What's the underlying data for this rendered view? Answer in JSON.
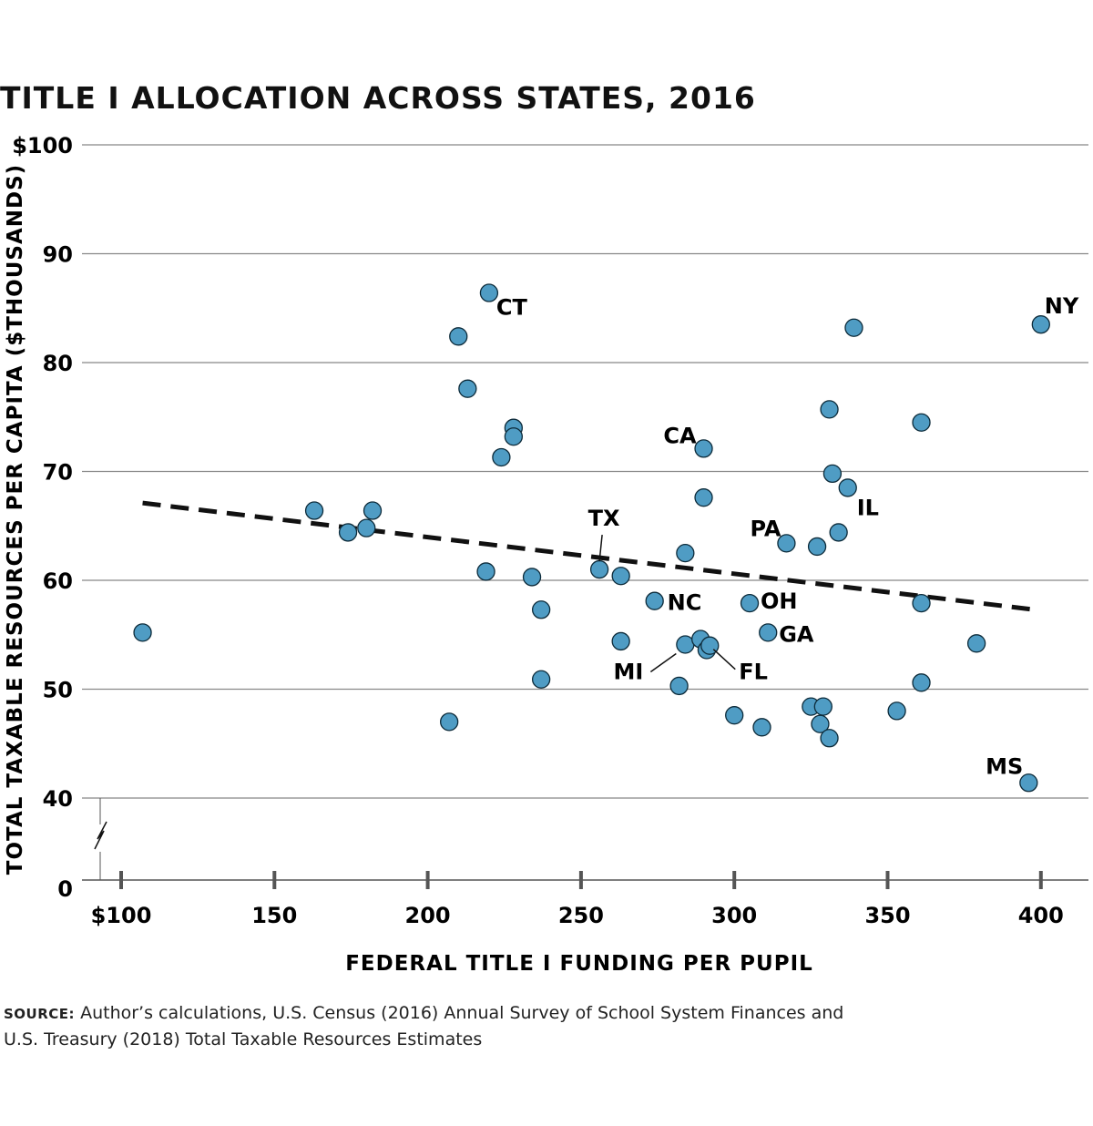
{
  "title": "TITLE I ALLOCATION ACROSS STATES, 2016",
  "source": {
    "label": "SOURCE:",
    "line1": "Author’s calculations, U.S. Census (2016) Annual Survey of School System Finances and",
    "line2": "U.S. Treasury (2018) Total Taxable Resources Estimates"
  },
  "colors": {
    "point": "#4f9cc4",
    "point_stroke": "#0d2b3a",
    "trend": "#111111",
    "grid": "#888888"
  },
  "chart_data": {
    "type": "scatter",
    "xlabel": "FEDERAL TITLE I FUNDING PER PUPIL",
    "ylabel": "TOTAL TAXABLE RESOURCES PER CAPITA ($THOUSANDS)",
    "xlim": [
      93,
      410
    ],
    "ylim": [
      40,
      100
    ],
    "axis_break": true,
    "x_ticks": [
      {
        "value": 100,
        "label": "$100"
      },
      {
        "value": 150,
        "label": "150"
      },
      {
        "value": 200,
        "label": "200"
      },
      {
        "value": 250,
        "label": "250"
      },
      {
        "value": 300,
        "label": "300"
      },
      {
        "value": 350,
        "label": "350"
      },
      {
        "value": 400,
        "label": "400"
      }
    ],
    "y_ticks": [
      {
        "value": 100,
        "label": "$100"
      },
      {
        "value": 90,
        "label": "90"
      },
      {
        "value": 80,
        "label": "80"
      },
      {
        "value": 70,
        "label": "70"
      },
      {
        "value": 60,
        "label": "60"
      },
      {
        "value": 50,
        "label": "50"
      },
      {
        "value": 40,
        "label": "40"
      }
    ],
    "y_zero_label": "0",
    "trendline": [
      [
        107,
        67.1
      ],
      [
        398,
        57.3
      ]
    ],
    "points": [
      {
        "x": 107,
        "y": 55.2
      },
      {
        "x": 163,
        "y": 66.4
      },
      {
        "x": 174,
        "y": 64.4
      },
      {
        "x": 180,
        "y": 64.8
      },
      {
        "x": 182,
        "y": 66.4
      },
      {
        "x": 207,
        "y": 47.0
      },
      {
        "x": 210,
        "y": 82.4
      },
      {
        "x": 213,
        "y": 77.6
      },
      {
        "x": 219,
        "y": 60.8
      },
      {
        "x": 220,
        "y": 86.4,
        "label": "CT"
      },
      {
        "x": 224,
        "y": 71.3
      },
      {
        "x": 228,
        "y": 74.0
      },
      {
        "x": 228,
        "y": 73.2
      },
      {
        "x": 234,
        "y": 60.3
      },
      {
        "x": 237,
        "y": 57.3
      },
      {
        "x": 237,
        "y": 50.9
      },
      {
        "x": 256,
        "y": 61.0,
        "label": "TX"
      },
      {
        "x": 263,
        "y": 60.4
      },
      {
        "x": 263,
        "y": 54.4
      },
      {
        "x": 274,
        "y": 58.1,
        "label": "NC"
      },
      {
        "x": 282,
        "y": 50.3
      },
      {
        "x": 284,
        "y": 62.5
      },
      {
        "x": 284,
        "y": 54.1,
        "label": "MI"
      },
      {
        "x": 289,
        "y": 54.6
      },
      {
        "x": 290,
        "y": 72.1,
        "label": "CA"
      },
      {
        "x": 290,
        "y": 67.6
      },
      {
        "x": 291,
        "y": 53.6
      },
      {
        "x": 292,
        "y": 54.0,
        "label": "FL"
      },
      {
        "x": 300,
        "y": 47.6
      },
      {
        "x": 305,
        "y": 57.9,
        "label": "OH"
      },
      {
        "x": 309,
        "y": 46.5
      },
      {
        "x": 311,
        "y": 55.2,
        "label": "GA"
      },
      {
        "x": 317,
        "y": 63.4,
        "label": "PA"
      },
      {
        "x": 325,
        "y": 48.4
      },
      {
        "x": 327,
        "y": 63.1
      },
      {
        "x": 328,
        "y": 46.8
      },
      {
        "x": 329,
        "y": 48.4
      },
      {
        "x": 331,
        "y": 75.7
      },
      {
        "x": 331,
        "y": 45.5
      },
      {
        "x": 332,
        "y": 69.8
      },
      {
        "x": 334,
        "y": 64.4
      },
      {
        "x": 337,
        "y": 68.5,
        "label": "IL"
      },
      {
        "x": 339,
        "y": 83.2
      },
      {
        "x": 353,
        "y": 48.0
      },
      {
        "x": 361,
        "y": 74.5
      },
      {
        "x": 361,
        "y": 57.9
      },
      {
        "x": 361,
        "y": 50.6
      },
      {
        "x": 379,
        "y": 54.2
      },
      {
        "x": 396,
        "y": 41.4,
        "label": "MS"
      },
      {
        "x": 400,
        "y": 83.5,
        "label": "NY"
      }
    ]
  }
}
